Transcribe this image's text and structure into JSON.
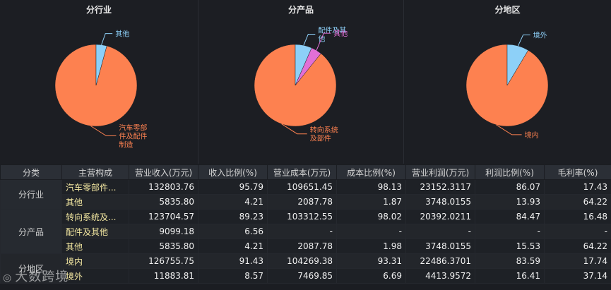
{
  "colors": {
    "main": "#fd8150",
    "other": "#8dd0f8",
    "other2": "#e26fd6"
  },
  "chart_data": [
    {
      "type": "pie",
      "title": "分行业",
      "slices": [
        {
          "label": "汽车零部件及配件制造",
          "lines": [
            "汽车零部",
            "件及配件",
            "制造"
          ],
          "value": 95.79,
          "color": "#fd8150"
        },
        {
          "label": "其他",
          "lines": [
            "其他"
          ],
          "value": 4.21,
          "color": "#8dd0f8"
        }
      ]
    },
    {
      "type": "pie",
      "title": "分产品",
      "slices": [
        {
          "label": "转向系统及部件",
          "lines": [
            "转向系统",
            "及部件"
          ],
          "value": 89.23,
          "color": "#fd8150"
        },
        {
          "label": "配件及其他",
          "lines": [
            "配件及其",
            "他"
          ],
          "value": 6.56,
          "color": "#8dd0f8"
        },
        {
          "label": "其他",
          "lines": [
            "其他"
          ],
          "value": 4.21,
          "color": "#e26fd6"
        }
      ]
    },
    {
      "type": "pie",
      "title": "分地区",
      "slices": [
        {
          "label": "境内",
          "lines": [
            "境内"
          ],
          "value": 91.43,
          "color": "#fd8150"
        },
        {
          "label": "境外",
          "lines": [
            "境外"
          ],
          "value": 8.57,
          "color": "#8dd0f8"
        }
      ]
    }
  ],
  "table": {
    "headers": [
      "分类",
      "主营构成",
      "营业收入(万元)",
      "收入比例(%)",
      "营业成本(万元)",
      "成本比例(%)",
      "营业利润(万元)",
      "利润比例(%)",
      "毛利率(%)"
    ],
    "groups": [
      {
        "name": "分行业",
        "rows": [
          [
            "汽车零部件...",
            "132803.76",
            "95.79",
            "109651.45",
            "98.13",
            "23152.3117",
            "86.07",
            "17.43"
          ],
          [
            "其他",
            "5835.80",
            "4.21",
            "2087.78",
            "1.87",
            "3748.0155",
            "13.93",
            "64.22"
          ]
        ]
      },
      {
        "name": "分产品",
        "rows": [
          [
            "转向系统及...",
            "123704.57",
            "89.23",
            "103312.55",
            "98.02",
            "20392.0211",
            "84.47",
            "16.48"
          ],
          [
            "配件及其他",
            "9099.18",
            "6.56",
            "-",
            "-",
            "-",
            "-",
            "-"
          ],
          [
            "其他",
            "5835.80",
            "4.21",
            "2087.78",
            "1.98",
            "3748.0155",
            "15.53",
            "64.22"
          ]
        ]
      },
      {
        "name": "分地区",
        "rows": [
          [
            "境内",
            "126755.75",
            "91.43",
            "104269.38",
            "93.31",
            "22486.3701",
            "83.59",
            "17.74"
          ],
          [
            "境外",
            "11883.81",
            "8.57",
            "7469.85",
            "6.69",
            "4413.9572",
            "16.41",
            "37.14"
          ]
        ]
      }
    ]
  },
  "watermark": {
    "text": "大数跨境",
    "icon": "logo-icon"
  }
}
